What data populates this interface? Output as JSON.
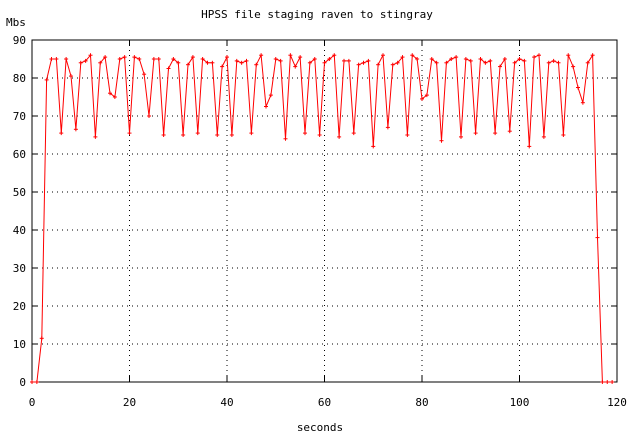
{
  "chart_data": {
    "type": "line",
    "title": "HPSS file staging raven to stingray",
    "xlabel": "seconds",
    "ylabel": "Mbs",
    "xlim": [
      0,
      120
    ],
    "ylim": [
      0,
      90
    ],
    "xticks": [
      0,
      20,
      40,
      60,
      80,
      100,
      120
    ],
    "yticks": [
      0,
      10,
      20,
      30,
      40,
      50,
      60,
      70,
      80,
      90
    ],
    "grid": true,
    "line_color": "#ff0000",
    "series": [
      {
        "name": "",
        "x": [
          0,
          1,
          2,
          3,
          4,
          5,
          6,
          7,
          8,
          9,
          10,
          11,
          12,
          13,
          14,
          15,
          16,
          17,
          18,
          19,
          20,
          21,
          22,
          23,
          24,
          25,
          26,
          27,
          28,
          29,
          30,
          31,
          32,
          33,
          34,
          35,
          36,
          37,
          38,
          39,
          40,
          41,
          42,
          43,
          44,
          45,
          46,
          47,
          48,
          49,
          50,
          51,
          52,
          53,
          54,
          55,
          56,
          57,
          58,
          59,
          60,
          61,
          62,
          63,
          64,
          65,
          66,
          67,
          68,
          69,
          70,
          71,
          72,
          73,
          74,
          75,
          76,
          77,
          78,
          79,
          80,
          81,
          82,
          83,
          84,
          85,
          86,
          87,
          88,
          89,
          90,
          91,
          92,
          93,
          94,
          95,
          96,
          97,
          98,
          99,
          100,
          101,
          102,
          103,
          104,
          105,
          106,
          107,
          108,
          109,
          110,
          111,
          112,
          113,
          114,
          115,
          116,
          117,
          118,
          119
        ],
        "values": [
          0,
          0,
          11.5,
          79.5,
          85,
          85,
          65.5,
          85,
          80.5,
          66.5,
          84,
          84.5,
          86,
          64.5,
          84,
          85.5,
          76,
          75,
          85,
          85.5,
          65.5,
          85.5,
          85,
          81,
          70,
          85,
          85,
          65,
          82.5,
          85,
          84,
          65,
          83.5,
          85.5,
          65.5,
          85,
          84,
          84,
          65,
          83,
          85.5,
          65,
          84.5,
          84,
          84.5,
          65.5,
          83.5,
          86,
          72.5,
          75.5,
          85,
          84.5,
          64,
          86,
          83,
          85.5,
          65.5,
          84,
          85,
          65,
          84,
          85,
          86,
          64.5,
          84.5,
          84.5,
          65.5,
          83.5,
          84,
          84.5,
          62,
          83.5,
          86,
          67,
          83.5,
          84,
          85.5,
          65,
          86,
          85,
          74.5,
          75.5,
          85,
          84,
          63.5,
          84,
          85,
          85.5,
          64.5,
          85,
          84.5,
          65.5,
          85,
          84,
          84.5,
          65.5,
          83,
          85,
          66,
          84,
          85,
          84.5,
          62,
          85.5,
          86,
          64.5,
          84,
          84.5,
          84,
          65,
          86,
          83,
          77.5,
          73.5,
          84,
          86,
          38,
          0,
          0,
          0
        ]
      }
    ]
  }
}
